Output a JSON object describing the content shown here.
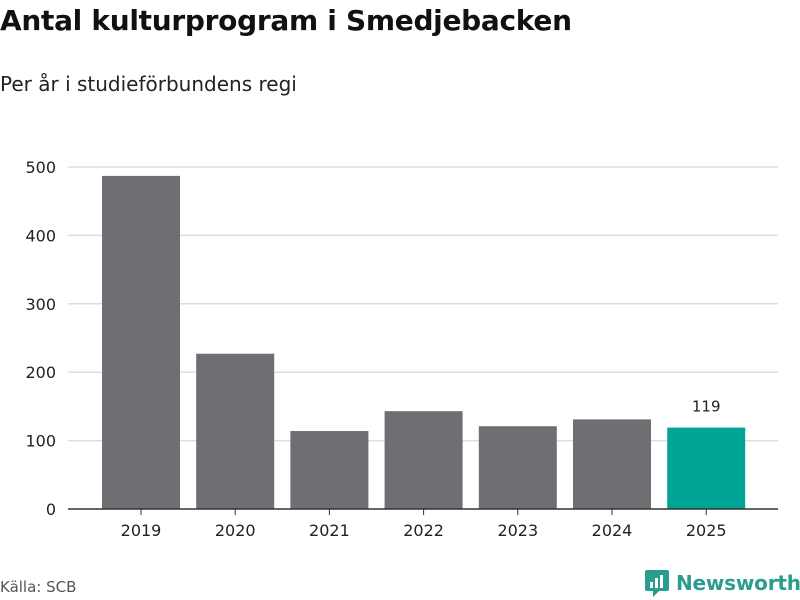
{
  "header": {
    "title": "Antal kulturprogram i Smedjebacken",
    "subtitle": "Per år i studieförbundens regi"
  },
  "footer": {
    "source": "Källa: SCB",
    "brand": "Newsworthy"
  },
  "colors": {
    "bar": "#6e6e73",
    "highlight": "#00a497",
    "grid": "#dddddd",
    "axis": "#333333",
    "brand": "#2a9d8f"
  },
  "chart_data": {
    "type": "bar",
    "title": "Antal kulturprogram i Smedjebacken",
    "subtitle": "Per år i studieförbundens regi",
    "xlabel": "",
    "ylabel": "",
    "categories": [
      "2019",
      "2020",
      "2021",
      "2022",
      "2023",
      "2024",
      "2025"
    ],
    "values": [
      487,
      227,
      114,
      143,
      121,
      131,
      119
    ],
    "highlight_index": 6,
    "data_labels": [
      {
        "index": 6,
        "text": "119"
      }
    ],
    "ylim": [
      0,
      500
    ],
    "yticks": [
      0,
      100,
      200,
      300,
      400,
      500
    ],
    "grid": true,
    "legend": "none"
  }
}
